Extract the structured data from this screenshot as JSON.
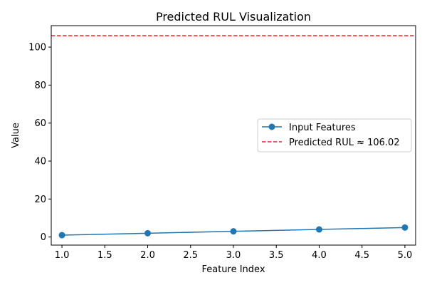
{
  "chart_data": {
    "type": "line",
    "title": "Predicted RUL Visualization",
    "xlabel": "Feature Index",
    "ylabel": "Value",
    "xlim": [
      0.875,
      5.125
    ],
    "ylim": [
      -4.25,
      111.3
    ],
    "xticks": [
      1.0,
      1.5,
      2.0,
      2.5,
      3.0,
      3.5,
      4.0,
      4.5,
      5.0
    ],
    "xtick_labels": [
      "1.0",
      "1.5",
      "2.0",
      "2.5",
      "3.0",
      "3.5",
      "4.0",
      "4.5",
      "5.0"
    ],
    "yticks": [
      0,
      20,
      40,
      60,
      80,
      100
    ],
    "ytick_labels": [
      "0",
      "20",
      "40",
      "60",
      "80",
      "100"
    ],
    "grid": false,
    "legend_position": "center-right",
    "series": [
      {
        "name": "Input Features",
        "type": "line",
        "marker": "circle",
        "color": "#1f77b4",
        "x": [
          1,
          2,
          3,
          4,
          5
        ],
        "y": [
          1,
          2,
          3,
          4,
          5
        ]
      }
    ],
    "reference_lines": [
      {
        "name": "Predicted RUL ≈ 106.02",
        "orientation": "horizontal",
        "style": "dashed",
        "color": "#d62728",
        "y": 106.02
      }
    ]
  }
}
